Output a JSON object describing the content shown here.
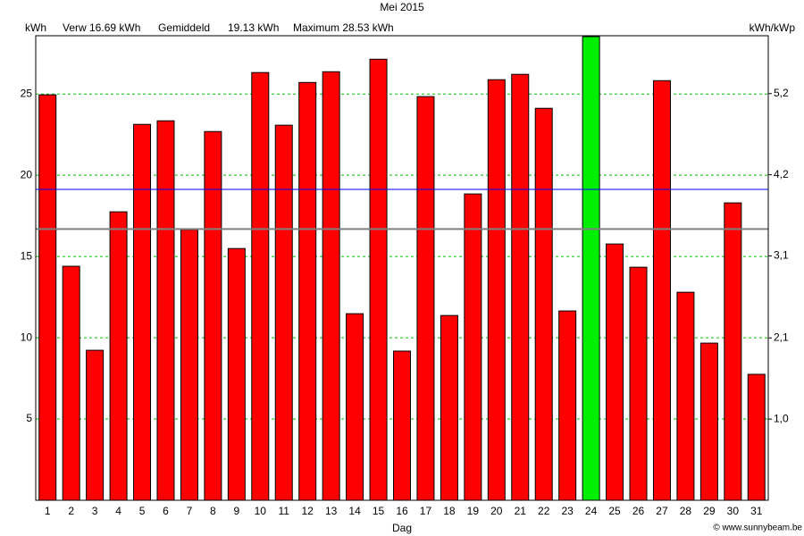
{
  "chart_data": {
    "type": "bar",
    "title": "Mei 2015",
    "y_label": "kWh",
    "y2_label": "kWh/kWp",
    "x_label": "Dag",
    "credit": "© www.sunnybeam.be",
    "categories": [
      "1",
      "2",
      "3",
      "4",
      "5",
      "6",
      "7",
      "8",
      "9",
      "10",
      "11",
      "12",
      "13",
      "14",
      "15",
      "16",
      "17",
      "18",
      "19",
      "20",
      "21",
      "22",
      "23",
      "24",
      "25",
      "26",
      "27",
      "28",
      "29",
      "30",
      "31"
    ],
    "values": [
      24.95,
      14.4,
      9.23,
      17.75,
      23.13,
      23.35,
      16.65,
      22.69,
      15.49,
      26.32,
      23.08,
      25.71,
      26.37,
      11.48,
      27.14,
      9.18,
      24.84,
      11.37,
      18.85,
      25.88,
      26.21,
      24.12,
      11.65,
      28.53,
      15.77,
      14.34,
      25.82,
      12.8,
      9.67,
      18.3,
      7.75
    ],
    "colors": [
      "#ff0000",
      "#ff0000",
      "#ff0000",
      "#ff0000",
      "#ff0000",
      "#ff0000",
      "#ff0000",
      "#ff0000",
      "#ff0000",
      "#ff0000",
      "#ff0000",
      "#ff0000",
      "#ff0000",
      "#ff0000",
      "#ff0000",
      "#ff0000",
      "#ff0000",
      "#ff0000",
      "#ff0000",
      "#ff0000",
      "#ff0000",
      "#ff0000",
      "#ff0000",
      "#00ee00",
      "#ff0000",
      "#ff0000",
      "#ff0000",
      "#ff0000",
      "#ff0000",
      "#ff0000",
      "#ff0000"
    ],
    "ylim": [
      0,
      28.53
    ],
    "yticks": [
      5,
      10,
      15,
      20,
      25
    ],
    "y2lim": [
      0,
      5.94
    ],
    "y2ticks": [
      {
        "value": 1.04,
        "label": "1,0"
      },
      {
        "value": 2.08,
        "label": "2,1"
      },
      {
        "value": 3.13,
        "label": "3,1"
      },
      {
        "value": 4.17,
        "label": "4,2"
      },
      {
        "value": 5.21,
        "label": "5,2"
      }
    ],
    "grid": true,
    "grid_color": "#00c000",
    "reference_lines": [
      {
        "label": "Verw 16.69 kWh",
        "value": 16.69,
        "color": "#808080"
      },
      {
        "name": "Gemiddeld",
        "label": "19.13 kWh",
        "value": 19.13,
        "color": "#0000ff"
      }
    ],
    "max_annotation": {
      "label": "Maximum 28.53 kWh",
      "color": "#00ee00"
    }
  }
}
